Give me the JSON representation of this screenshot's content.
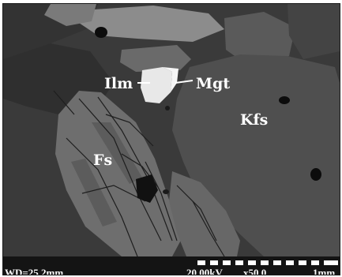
{
  "labels": {
    "ilmenite": "Ilm",
    "magnetite": "Mgt",
    "k_feldspar": "Kfs",
    "feldspar": "Fs"
  },
  "databar": {
    "working_distance": "WD=25.2mm",
    "accelerating_voltage": "20.00kV",
    "magnification": "x50.0",
    "scale_length": "1mm"
  },
  "colors": {
    "ilmenite_phase": "#e8e8e8",
    "magnetite_phase": "#f5f5f5",
    "k_feldspar_phase": "#4f4f4f",
    "feldspar_phase": "#6e6e6e",
    "matrix": "#3a3a3a",
    "pores": "#0c0c0c",
    "databar_background": "#141414",
    "text": "#ffffff"
  }
}
